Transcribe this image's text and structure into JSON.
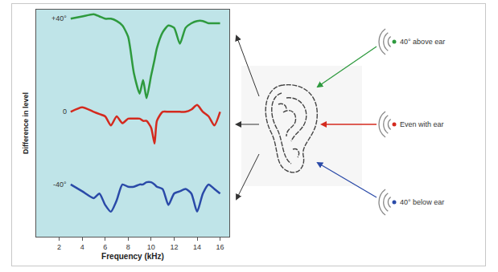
{
  "chart_data": {
    "type": "line",
    "x_label": "Frequency (kHz)",
    "y_label": "Difference in level",
    "x": [
      3,
      4,
      5,
      5.5,
      6,
      6.5,
      7,
      7.5,
      8,
      8.5,
      9,
      9.3,
      9.6,
      10,
      10.3,
      10.5,
      11,
      11.5,
      12,
      12.5,
      13,
      13.5,
      14,
      14.5,
      15,
      15.5,
      16
    ],
    "series": [
      {
        "name": "+40°",
        "color": "#2e9a3e",
        "values": [
          96,
          97,
          98,
          97,
          96,
          96,
          95,
          93,
          88,
          72,
          63,
          69,
          61,
          71,
          78,
          83,
          90,
          93,
          92,
          85,
          92,
          94,
          95,
          95,
          94,
          94,
          94
        ]
      },
      {
        "name": "0",
        "color": "#d42a1e",
        "values": [
          55,
          57,
          55,
          54,
          53,
          49,
          53,
          50,
          52,
          52,
          52,
          51,
          51,
          48,
          41,
          51,
          55,
          55,
          55,
          55,
          55,
          56,
          58,
          55,
          53,
          49,
          55
        ]
      },
      {
        "name": "-40°",
        "color": "#2a4aa8",
        "values": [
          23,
          20,
          17,
          19,
          14,
          11,
          16,
          23,
          22,
          22,
          23,
          23,
          24,
          24,
          23,
          22,
          21,
          14,
          19,
          20,
          21,
          19,
          11,
          19,
          23,
          21,
          19
        ]
      }
    ],
    "xlim": [
      0,
      16.8
    ],
    "xticks": [
      2,
      4,
      6,
      8,
      10,
      12,
      14,
      16
    ],
    "ylim": [
      0,
      100
    ],
    "tick_labels": "x",
    "grid": false,
    "annotations": [
      "40° above ear",
      "Even with ear",
      "40° below ear"
    ]
  }
}
